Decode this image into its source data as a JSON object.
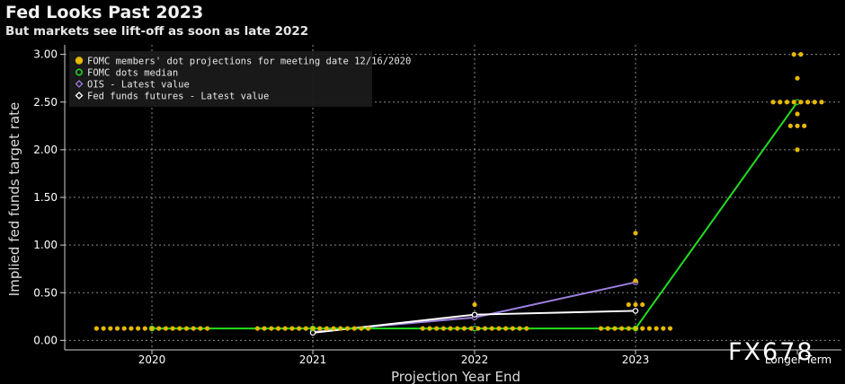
{
  "header": {
    "title": "Fed Looks Past 2023",
    "subtitle": "But markets see lift-off as soon as late 2022"
  },
  "watermark": "FX678",
  "chart_data": {
    "type": "scatter",
    "xlabel": "Projection Year End",
    "ylabel": "Implied fed funds target rate",
    "categories": [
      "2020",
      "2021",
      "2022",
      "2023",
      "Longer Term"
    ],
    "ylim": [
      -0.1,
      3.1
    ],
    "yticks": [
      "0.00",
      "0.50",
      "1.00",
      "1.50",
      "2.00",
      "2.50",
      "3.00"
    ],
    "grid": true,
    "legend_position": "top-left",
    "legend": [
      "FOMC members' dot projections for meeting date 12/16/2020",
      "FOMC dots median",
      "OIS - Latest value",
      "Fed funds futures - Latest value"
    ],
    "colors": {
      "dots": "#e6b800",
      "median": "#22dd22",
      "ois": "#9f7fe0",
      "futures": "#ffffff",
      "grid": "#8a8a8a"
    },
    "series": [
      {
        "name": "FOMC members' dot projections for meeting date 12/16/2020",
        "kind": "dots",
        "points": [
          {
            "category": "2020",
            "y": 0.125,
            "count": 17
          },
          {
            "category": "2021",
            "y": 0.125,
            "count": 17
          },
          {
            "category": "2022",
            "y": 0.125,
            "count": 16
          },
          {
            "category": "2022",
            "y": 0.375,
            "count": 1
          },
          {
            "category": "2023",
            "y": 0.125,
            "count": 11
          },
          {
            "category": "2023",
            "y": 0.375,
            "count": 3
          },
          {
            "category": "2023",
            "y": 0.625,
            "count": 1
          },
          {
            "category": "2023",
            "y": 1.125,
            "count": 1
          },
          {
            "category": "Longer Term",
            "y": 2.0,
            "count": 1
          },
          {
            "category": "Longer Term",
            "y": 2.25,
            "count": 3
          },
          {
            "category": "Longer Term",
            "y": 2.375,
            "count": 1
          },
          {
            "category": "Longer Term",
            "y": 2.5,
            "count": 8
          },
          {
            "category": "Longer Term",
            "y": 2.75,
            "count": 1
          },
          {
            "category": "Longer Term",
            "y": 3.0,
            "count": 2
          }
        ]
      },
      {
        "name": "FOMC dots median",
        "kind": "line",
        "x": [
          "2020",
          "2021",
          "2022",
          "2023",
          "Longer Term"
        ],
        "values": [
          0.125,
          0.125,
          0.125,
          0.125,
          2.5
        ]
      },
      {
        "name": "OIS - Latest value",
        "kind": "line",
        "x": [
          "2021",
          "2022",
          "2023"
        ],
        "values": [
          0.09,
          0.24,
          0.61
        ]
      },
      {
        "name": "Fed funds futures - Latest value",
        "kind": "line",
        "x": [
          "2021",
          "2022",
          "2023"
        ],
        "values": [
          0.08,
          0.27,
          0.31
        ]
      }
    ]
  }
}
